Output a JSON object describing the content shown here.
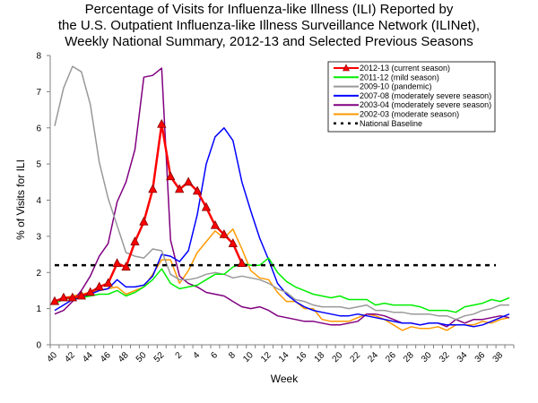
{
  "chart_data": {
    "type": "line",
    "title": [
      "Percentage of Visits for Influenza-like Illness (ILI) Reported by",
      "the U.S. Outpatient Influenza-like Illness Surveillance Network (ILINet),",
      "Weekly National Summary, 2012-13 and Selected Previous Seasons"
    ],
    "xlabel": "Week",
    "ylabel": "% of Visits for ILI",
    "ylim": [
      0,
      8
    ],
    "yticks": [
      0,
      1,
      2,
      3,
      4,
      5,
      6,
      7,
      8
    ],
    "x": [
      40,
      41,
      42,
      43,
      44,
      45,
      46,
      47,
      48,
      49,
      50,
      51,
      52,
      1,
      2,
      3,
      4,
      5,
      6,
      7,
      8,
      9,
      10,
      11,
      12,
      13,
      14,
      15,
      16,
      17,
      18,
      19,
      20,
      21,
      22,
      23,
      24,
      25,
      26,
      27,
      28,
      29,
      30,
      31,
      32,
      33,
      34,
      35,
      36,
      37,
      38,
      39
    ],
    "xtick_labels": [
      "40",
      "42",
      "44",
      "46",
      "48",
      "50",
      "52",
      "2",
      "4",
      "6",
      "8",
      "10",
      "12",
      "14",
      "16",
      "18",
      "20",
      "22",
      "24",
      "26",
      "28",
      "30",
      "32",
      "34",
      "36",
      "38"
    ],
    "grid": false,
    "legend_position": "top-right",
    "series": [
      {
        "name": "2012-13 (current season)",
        "color": "#ff0000",
        "marker": "triangle",
        "values": [
          1.2,
          1.3,
          1.3,
          1.35,
          1.45,
          1.6,
          1.7,
          2.25,
          2.15,
          2.85,
          3.4,
          4.3,
          6.1,
          4.65,
          4.3,
          4.5,
          4.25,
          3.8,
          3.3,
          3.05,
          2.8,
          2.25
        ]
      },
      {
        "name": "2011-12 (mild season)",
        "color": "#00ee00",
        "values": [
          1.15,
          1.25,
          1.3,
          1.3,
          1.35,
          1.4,
          1.4,
          1.5,
          1.35,
          1.45,
          1.6,
          1.8,
          2.1,
          1.7,
          1.55,
          1.6,
          1.65,
          1.8,
          1.95,
          1.95,
          2.15,
          2.25,
          2.2,
          2.2,
          2.4,
          2.0,
          1.75,
          1.6,
          1.5,
          1.4,
          1.35,
          1.3,
          1.35,
          1.25,
          1.25,
          1.25,
          1.1,
          1.15,
          1.1,
          1.1,
          1.1,
          1.05,
          0.95,
          0.95,
          0.95,
          0.9,
          1.05,
          1.1,
          1.15,
          1.25,
          1.2,
          1.3
        ]
      },
      {
        "name": "2009-10 (pandemic)",
        "color": "#999999",
        "values": [
          6.05,
          7.1,
          7.7,
          7.55,
          6.65,
          5.05,
          4.05,
          3.3,
          2.55,
          2.45,
          2.4,
          2.65,
          2.6,
          1.95,
          1.8,
          1.8,
          1.85,
          1.95,
          2.0,
          1.95,
          1.85,
          1.9,
          1.85,
          1.8,
          1.7,
          1.55,
          1.45,
          1.25,
          1.2,
          1.1,
          1.05,
          1.05,
          1.05,
          1.0,
          1.05,
          1.1,
          0.95,
          0.95,
          0.9,
          0.9,
          0.85,
          0.85,
          0.85,
          0.8,
          0.8,
          0.7,
          0.8,
          0.85,
          0.95,
          1.0,
          1.1,
          1.1
        ]
      },
      {
        "name": "2007-08 (moderately severe season)",
        "color": "#0000ff",
        "values": [
          0.95,
          1.1,
          1.25,
          1.3,
          1.4,
          1.5,
          1.55,
          1.8,
          1.6,
          1.6,
          1.65,
          1.9,
          2.5,
          2.45,
          2.3,
          2.6,
          3.6,
          5.0,
          5.75,
          6.0,
          5.65,
          4.5,
          3.7,
          2.95,
          2.35,
          1.7,
          1.4,
          1.2,
          1.05,
          0.95,
          0.9,
          0.85,
          0.8,
          0.8,
          0.85,
          0.8,
          0.75,
          0.7,
          0.65,
          0.6,
          0.6,
          0.55,
          0.6,
          0.6,
          0.55,
          0.55,
          0.55,
          0.5,
          0.55,
          0.65,
          0.75,
          0.85
        ]
      },
      {
        "name": "2003-04 (moderately severe season)",
        "color": "#800080",
        "values": [
          0.85,
          0.95,
          1.2,
          1.5,
          1.9,
          2.45,
          2.8,
          3.95,
          4.5,
          5.4,
          7.4,
          7.45,
          7.65,
          2.9,
          1.9,
          1.7,
          1.6,
          1.45,
          1.4,
          1.35,
          1.2,
          1.05,
          1.0,
          1.05,
          0.95,
          0.8,
          0.75,
          0.7,
          0.65,
          0.65,
          0.6,
          0.55,
          0.55,
          0.6,
          0.65,
          0.85,
          0.85,
          0.8,
          0.7,
          0.6,
          0.6,
          0.55,
          0.6,
          0.6,
          0.5,
          0.7,
          0.6,
          0.7,
          0.7,
          0.75,
          0.8,
          0.75
        ]
      },
      {
        "name": "2002-03 (moderate season)",
        "color": "#ff9900",
        "values": [
          1.2,
          1.3,
          1.35,
          1.4,
          1.45,
          1.5,
          1.55,
          1.6,
          1.4,
          1.5,
          1.6,
          1.95,
          2.35,
          2.35,
          1.7,
          2.05,
          2.55,
          2.85,
          3.15,
          2.95,
          3.2,
          2.65,
          2.05,
          1.85,
          1.8,
          1.45,
          1.2,
          1.2,
          1.0,
          1.0,
          0.7,
          0.65,
          0.65,
          0.65,
          0.75,
          0.85,
          0.8,
          0.7,
          0.55,
          0.4,
          0.5,
          0.45,
          0.45,
          0.5,
          0.4,
          0.55,
          0.55,
          0.55,
          0.65,
          0.6,
          0.7,
          0.75
        ]
      },
      {
        "name": "National Baseline",
        "color": "#000000",
        "dashed": true,
        "constant": 2.2
      }
    ]
  }
}
